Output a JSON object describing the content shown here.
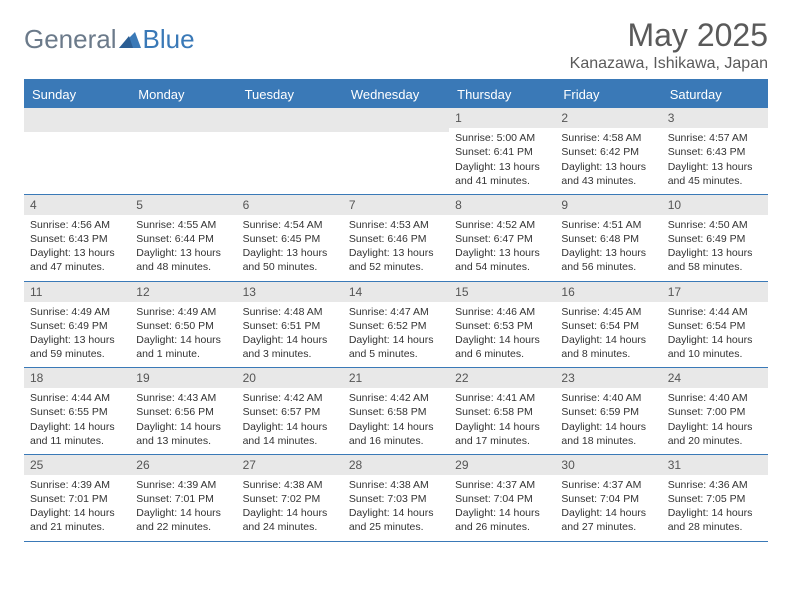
{
  "brand": {
    "part1": "General",
    "part2": "Blue"
  },
  "title": "May 2025",
  "location": "Kanazawa, Ishikawa, Japan",
  "colors": {
    "header_blue": "#3a79b7",
    "band_gray": "#e8e8e8",
    "text_gray": "#5a5a5a",
    "body_text": "#333333",
    "background": "#ffffff"
  },
  "day_names": [
    "Sunday",
    "Monday",
    "Tuesday",
    "Wednesday",
    "Thursday",
    "Friday",
    "Saturday"
  ],
  "weeks": [
    [
      null,
      null,
      null,
      null,
      {
        "n": "1",
        "sr": "5:00 AM",
        "ss": "6:41 PM",
        "dl": "13 hours and 41 minutes."
      },
      {
        "n": "2",
        "sr": "4:58 AM",
        "ss": "6:42 PM",
        "dl": "13 hours and 43 minutes."
      },
      {
        "n": "3",
        "sr": "4:57 AM",
        "ss": "6:43 PM",
        "dl": "13 hours and 45 minutes."
      }
    ],
    [
      {
        "n": "4",
        "sr": "4:56 AM",
        "ss": "6:43 PM",
        "dl": "13 hours and 47 minutes."
      },
      {
        "n": "5",
        "sr": "4:55 AM",
        "ss": "6:44 PM",
        "dl": "13 hours and 48 minutes."
      },
      {
        "n": "6",
        "sr": "4:54 AM",
        "ss": "6:45 PM",
        "dl": "13 hours and 50 minutes."
      },
      {
        "n": "7",
        "sr": "4:53 AM",
        "ss": "6:46 PM",
        "dl": "13 hours and 52 minutes."
      },
      {
        "n": "8",
        "sr": "4:52 AM",
        "ss": "6:47 PM",
        "dl": "13 hours and 54 minutes."
      },
      {
        "n": "9",
        "sr": "4:51 AM",
        "ss": "6:48 PM",
        "dl": "13 hours and 56 minutes."
      },
      {
        "n": "10",
        "sr": "4:50 AM",
        "ss": "6:49 PM",
        "dl": "13 hours and 58 minutes."
      }
    ],
    [
      {
        "n": "11",
        "sr": "4:49 AM",
        "ss": "6:49 PM",
        "dl": "13 hours and 59 minutes."
      },
      {
        "n": "12",
        "sr": "4:49 AM",
        "ss": "6:50 PM",
        "dl": "14 hours and 1 minute."
      },
      {
        "n": "13",
        "sr": "4:48 AM",
        "ss": "6:51 PM",
        "dl": "14 hours and 3 minutes."
      },
      {
        "n": "14",
        "sr": "4:47 AM",
        "ss": "6:52 PM",
        "dl": "14 hours and 5 minutes."
      },
      {
        "n": "15",
        "sr": "4:46 AM",
        "ss": "6:53 PM",
        "dl": "14 hours and 6 minutes."
      },
      {
        "n": "16",
        "sr": "4:45 AM",
        "ss": "6:54 PM",
        "dl": "14 hours and 8 minutes."
      },
      {
        "n": "17",
        "sr": "4:44 AM",
        "ss": "6:54 PM",
        "dl": "14 hours and 10 minutes."
      }
    ],
    [
      {
        "n": "18",
        "sr": "4:44 AM",
        "ss": "6:55 PM",
        "dl": "14 hours and 11 minutes."
      },
      {
        "n": "19",
        "sr": "4:43 AM",
        "ss": "6:56 PM",
        "dl": "14 hours and 13 minutes."
      },
      {
        "n": "20",
        "sr": "4:42 AM",
        "ss": "6:57 PM",
        "dl": "14 hours and 14 minutes."
      },
      {
        "n": "21",
        "sr": "4:42 AM",
        "ss": "6:58 PM",
        "dl": "14 hours and 16 minutes."
      },
      {
        "n": "22",
        "sr": "4:41 AM",
        "ss": "6:58 PM",
        "dl": "14 hours and 17 minutes."
      },
      {
        "n": "23",
        "sr": "4:40 AM",
        "ss": "6:59 PM",
        "dl": "14 hours and 18 minutes."
      },
      {
        "n": "24",
        "sr": "4:40 AM",
        "ss": "7:00 PM",
        "dl": "14 hours and 20 minutes."
      }
    ],
    [
      {
        "n": "25",
        "sr": "4:39 AM",
        "ss": "7:01 PM",
        "dl": "14 hours and 21 minutes."
      },
      {
        "n": "26",
        "sr": "4:39 AM",
        "ss": "7:01 PM",
        "dl": "14 hours and 22 minutes."
      },
      {
        "n": "27",
        "sr": "4:38 AM",
        "ss": "7:02 PM",
        "dl": "14 hours and 24 minutes."
      },
      {
        "n": "28",
        "sr": "4:38 AM",
        "ss": "7:03 PM",
        "dl": "14 hours and 25 minutes."
      },
      {
        "n": "29",
        "sr": "4:37 AM",
        "ss": "7:04 PM",
        "dl": "14 hours and 26 minutes."
      },
      {
        "n": "30",
        "sr": "4:37 AM",
        "ss": "7:04 PM",
        "dl": "14 hours and 27 minutes."
      },
      {
        "n": "31",
        "sr": "4:36 AM",
        "ss": "7:05 PM",
        "dl": "14 hours and 28 minutes."
      }
    ]
  ],
  "labels": {
    "sunrise_prefix": "Sunrise: ",
    "sunset_prefix": "Sunset: ",
    "daylight_prefix": "Daylight: "
  }
}
